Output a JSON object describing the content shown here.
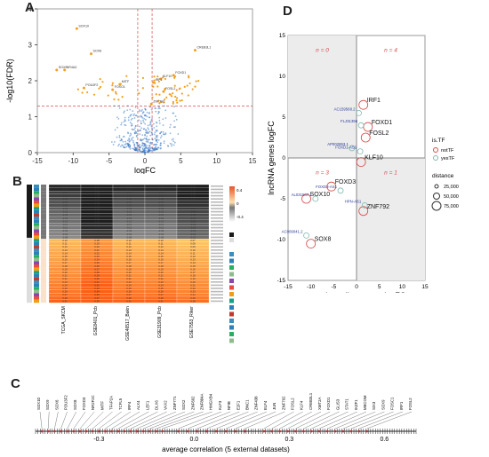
{
  "panels": {
    "a": "A",
    "b": "B",
    "c": "C",
    "d": "D"
  },
  "colors": {
    "accent": "#f0a020",
    "blue": "#3a78c2",
    "red": "#d84848",
    "quad": "#ececec"
  },
  "chart_data": [
    {
      "type": "scatter",
      "title": "",
      "xlabel": "logFC",
      "ylabel": "-log10(FDR)",
      "xlim": [
        -15,
        15
      ],
      "ylim": [
        0,
        4
      ],
      "xticks": [
        -15,
        -10,
        -5,
        0,
        5,
        10,
        15
      ],
      "yticks": [
        0,
        1,
        2,
        3,
        4
      ],
      "threshold_y": 1.3,
      "threshold_x": [
        -1,
        1
      ],
      "labeled_points": [
        {
          "label": "SOX10",
          "x": -9.5,
          "y": 3.45
        },
        {
          "label": "SOX9",
          "x": -12.3,
          "y": 2.3
        },
        {
          "label": "SOX6",
          "x": -7.5,
          "y": 2.75
        },
        {
          "label": "NR4A3",
          "x": -11.2,
          "y": 2.3
        },
        {
          "label": "POU3F2",
          "x": -8.5,
          "y": 1.8
        },
        {
          "label": "KLF10",
          "x": 2.2,
          "y": 2.05
        },
        {
          "label": "FOXO1",
          "x": -4.5,
          "y": 1.75
        },
        {
          "label": "CREB3L1",
          "x": 7.0,
          "y": 2.85
        },
        {
          "label": "FOXD1",
          "x": 4.0,
          "y": 2.15
        },
        {
          "label": "MITF",
          "x": -3.5,
          "y": 1.9
        },
        {
          "label": "IRF1",
          "x": 1.2,
          "y": 1.95
        },
        {
          "label": "FOSL2",
          "x": 2.6,
          "y": 1.7
        },
        {
          "label": "ZNF792",
          "x": 0.9,
          "y": 1.35
        }
      ],
      "ns_cloud": {
        "xrange": [
          -3,
          3
        ],
        "yrange": [
          0,
          1.3
        ]
      }
    },
    {
      "type": "heatmap",
      "columns": [
        "TCGA_SKCM",
        "GSE8401_Pcb",
        "GSE46517_Bakn",
        "GSE31909_Pcb",
        "GSE7553_Riker"
      ],
      "values_range": [
        -0.4,
        0.4
      ],
      "row_values": [
        -0.19,
        -0.19,
        -0.17,
        -0.17,
        -0.16,
        -0.15,
        -0.15,
        -0.14,
        -0.13,
        -0.13,
        -0.12,
        -0.12,
        -0.11,
        -0.11,
        -0.1,
        -0.1,
        -0.09,
        0.1,
        0.11,
        0.12,
        0.13,
        0.14,
        0.15,
        0.16,
        0.17,
        0.18,
        0.19,
        0.2,
        0.21,
        0.22,
        0.23,
        0.24,
        0.25,
        0.26,
        0.27,
        0.29,
        0.31
      ]
    },
    {
      "type": "scatter",
      "xlabel": "average correlation (5 external datasets)",
      "xlim": [
        -0.5,
        0.7
      ],
      "xticks": [
        -0.3,
        0.0,
        0.3,
        0.6
      ],
      "genes": [
        "SOX10",
        "SOX9",
        "SOX6",
        "POU3F2",
        "SOX8",
        "FOXD3",
        "NR2F2C",
        "MITF",
        "TFAP2A",
        "TCFL5",
        "IRF4",
        "ALX4",
        "LEF1",
        "DLX6",
        "VAX2",
        "ZNF771",
        "SOX2",
        "ZNF692",
        "ZNF804A",
        "HMGXB4",
        "KLF3",
        "NFIB",
        "E2F1",
        "BNC1",
        "ZNF438",
        "ELF4",
        "JUN",
        "ZNF792",
        "FOSL2",
        "KLF4",
        "CREB3L1",
        "XMT2A",
        "FOXD1",
        "GLIS3",
        "STAT1",
        "IKZF1",
        "MECOM",
        "SIX3",
        "SOX9",
        "FOSC1",
        "IRF1",
        "FOSL2"
      ]
    },
    {
      "type": "scatter",
      "xlabel": "protein-coding genes logFC",
      "ylabel": "lncRNA genes logFC",
      "xlim": [
        -15,
        15
      ],
      "ylim": [
        -15,
        15
      ],
      "xticks": [
        -15,
        -10,
        -5,
        0,
        5,
        10,
        15
      ],
      "yticks": [
        -15,
        -10,
        -5,
        0,
        5,
        10,
        15
      ],
      "quadrant_counts": {
        "top_left": "n = 0",
        "top_right": "n = 4",
        "bottom_left": "n = 3",
        "bottom_right": "n = 1"
      },
      "legend": {
        "title": "is.TF",
        "items": [
          "notTF",
          "yesTF"
        ],
        "size_title": "distance",
        "sizes": [
          "25,000",
          "50,000",
          "75,000"
        ]
      },
      "points": [
        {
          "x": 1.5,
          "y": 6.5,
          "lab": "IRF1",
          "tf": "yes"
        },
        {
          "x": 2.5,
          "y": 3.8,
          "lab": "FOXD1",
          "tf": "yes"
        },
        {
          "x": 2.0,
          "y": 2.5,
          "lab": "FOSL2",
          "tf": "yes"
        },
        {
          "x": 1.0,
          "y": -0.5,
          "lab": "KLF10",
          "tf": "yes"
        },
        {
          "x": -5.5,
          "y": -3.5,
          "lab": "FOXD3",
          "tf": "yes"
        },
        {
          "x": -11.0,
          "y": -5.0,
          "lab": "SOX10",
          "tf": "yes"
        },
        {
          "x": 1.5,
          "y": -6.5,
          "lab": "ZNF792",
          "tf": "yes"
        },
        {
          "x": -10.0,
          "y": -10.5,
          "lab": "SOX8",
          "tf": "yes"
        },
        {
          "x": 0.5,
          "y": 5.5,
          "lab": "AC159568.2",
          "tf": "no"
        },
        {
          "x": 1.0,
          "y": 4.0,
          "lab": "FLJ31356",
          "tf": "no"
        },
        {
          "x": -1.0,
          "y": 1.2,
          "lab": "AP002853.1",
          "tf": "no"
        },
        {
          "x": 0.8,
          "y": 0.8,
          "lab": "FOXD1-AS1",
          "tf": "no"
        },
        {
          "x": -3.5,
          "y": -4.0,
          "lab": "FOXD3-AS1",
          "tf": "no"
        },
        {
          "x": -9.0,
          "y": -5.0,
          "lab": "AL031587.1",
          "tf": "no"
        },
        {
          "x": 1.8,
          "y": -5.8,
          "lab": "HPN-AS1",
          "tf": "no"
        },
        {
          "x": -11.0,
          "y": -9.5,
          "lab": "AC009041.2",
          "tf": "no"
        }
      ]
    }
  ]
}
